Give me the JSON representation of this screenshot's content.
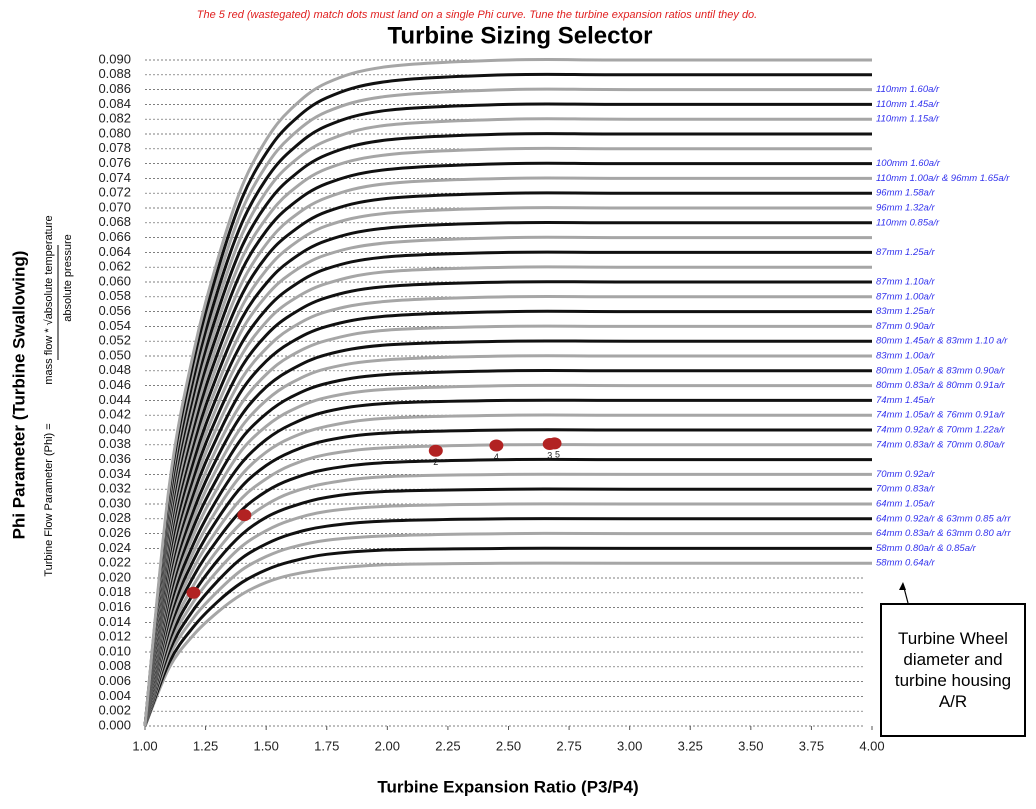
{
  "chart_data": {
    "type": "line",
    "note": "The 5 red (wastegated) match dots must land on a single Phi curve.  Tune the turbine expansion ratios until they do.",
    "title": "Turbine Sizing Selector",
    "x_label": "Turbine Expansion Ratio (P3/P4)",
    "y_label": "Phi Parameter (Turbine Swallowing)",
    "y_formula": {
      "lhs": "Turbine Flow Parameter (Phi) =",
      "numerator": "mass flow * √absolute temperature",
      "denominator": "absolute pressure"
    },
    "annotation": "Turbine Wheel diameter and turbine housing A/R",
    "grid": true,
    "xlim": [
      1.0,
      4.0
    ],
    "ylim": [
      0,
      0.09
    ],
    "xticks": [
      {
        "value": 1,
        "label": "1.00"
      },
      {
        "value": 1.25,
        "label": "1.25"
      },
      {
        "value": 1.5,
        "label": "1.50"
      },
      {
        "value": 1.75,
        "label": "1.75"
      },
      {
        "value": 2,
        "label": "2.00"
      },
      {
        "value": 2.25,
        "label": "2.25"
      },
      {
        "value": 2.5,
        "label": "2.50"
      },
      {
        "value": 2.75,
        "label": "2.75"
      },
      {
        "value": 3,
        "label": "3.00"
      },
      {
        "value": 3.25,
        "label": "3.25"
      },
      {
        "value": 3.5,
        "label": "3.50"
      },
      {
        "value": 3.75,
        "label": "3.75"
      },
      {
        "value": 4,
        "label": "4.00"
      }
    ],
    "yticks": [
      {
        "value": 0,
        "label": "0.000"
      },
      {
        "value": 0.002,
        "label": "0.002"
      },
      {
        "value": 0.004,
        "label": "0.004"
      },
      {
        "value": 0.006,
        "label": "0.006"
      },
      {
        "value": 0.008,
        "label": "0.008"
      },
      {
        "value": 0.01,
        "label": "0.010"
      },
      {
        "value": 0.012,
        "label": "0.012"
      },
      {
        "value": 0.014,
        "label": "0.014"
      },
      {
        "value": 0.016,
        "label": "0.016"
      },
      {
        "value": 0.018,
        "label": "0.018"
      },
      {
        "value": 0.02,
        "label": "0.020"
      },
      {
        "value": 0.022,
        "label": "0.022"
      },
      {
        "value": 0.024,
        "label": "0.024"
      },
      {
        "value": 0.026,
        "label": "0.026"
      },
      {
        "value": 0.028,
        "label": "0.028"
      },
      {
        "value": 0.03,
        "label": "0.030"
      },
      {
        "value": 0.032,
        "label": "0.032"
      },
      {
        "value": 0.034,
        "label": "0.034"
      },
      {
        "value": 0.036,
        "label": "0.036"
      },
      {
        "value": 0.038,
        "label": "0.038"
      },
      {
        "value": 0.04,
        "label": "0.040"
      },
      {
        "value": 0.042,
        "label": "0.042"
      },
      {
        "value": 0.044,
        "label": "0.044"
      },
      {
        "value": 0.046,
        "label": "0.046"
      },
      {
        "value": 0.048,
        "label": "0.048"
      },
      {
        "value": 0.05,
        "label": "0.050"
      },
      {
        "value": 0.052,
        "label": "0.052"
      },
      {
        "value": 0.054,
        "label": "0.054"
      },
      {
        "value": 0.056,
        "label": "0.056"
      },
      {
        "value": 0.058,
        "label": "0.058"
      },
      {
        "value": 0.06,
        "label": "0.060"
      },
      {
        "value": 0.062,
        "label": "0.062"
      },
      {
        "value": 0.064,
        "label": "0.064"
      },
      {
        "value": 0.066,
        "label": "0.066"
      },
      {
        "value": 0.068,
        "label": "0.068"
      },
      {
        "value": 0.07,
        "label": "0.070"
      },
      {
        "value": 0.072,
        "label": "0.072"
      },
      {
        "value": 0.074,
        "label": "0.074"
      },
      {
        "value": 0.076,
        "label": "0.076"
      },
      {
        "value": 0.078,
        "label": "0.078"
      },
      {
        "value": 0.08,
        "label": "0.080"
      },
      {
        "value": 0.082,
        "label": "0.082"
      },
      {
        "value": 0.084,
        "label": "0.084"
      },
      {
        "value": 0.086,
        "label": "0.086"
      },
      {
        "value": 0.088,
        "label": "0.088"
      },
      {
        "value": 0.09,
        "label": "0.090"
      }
    ],
    "x": [
      1.0,
      1.1,
      1.2,
      1.3,
      1.4,
      1.5,
      1.6,
      1.75,
      2.0,
      2.5,
      3.0,
      4.0
    ],
    "series": [
      {
        "name": "58mm 0.64a/r",
        "color": "#a6a6a6",
        "values": [
          0,
          0.0079,
          0.0123,
          0.0154,
          0.0178,
          0.0194,
          0.0204,
          0.0212,
          0.0218,
          0.022,
          0.022,
          0.022
        ]
      },
      {
        "name": "58mm 0.80a/r & 0.85a/r",
        "color": "#111111",
        "values": [
          0,
          0.0086,
          0.0134,
          0.0168,
          0.0194,
          0.0211,
          0.0222,
          0.0232,
          0.0238,
          0.024,
          0.024,
          0.024
        ]
      },
      {
        "name": "64mm 0.83a/r & 63mm 0.80 a/rr",
        "color": "#a6a6a6",
        "values": [
          0,
          0.0094,
          0.0146,
          0.0182,
          0.0211,
          0.0229,
          0.0241,
          0.0251,
          0.0257,
          0.026,
          0.026,
          0.026
        ]
      },
      {
        "name": "64mm 0.92a/r & 63mm 0.85 a/rr",
        "color": "#111111",
        "values": [
          0,
          0.0101,
          0.0157,
          0.0196,
          0.0227,
          0.0246,
          0.0259,
          0.027,
          0.0277,
          0.028,
          0.028,
          0.028
        ]
      },
      {
        "name": "64mm 1.05a/r",
        "color": "#a6a6a6",
        "values": [
          0,
          0.0108,
          0.0168,
          0.021,
          0.0243,
          0.0264,
          0.0278,
          0.029,
          0.0297,
          0.03,
          0.03,
          0.03
        ]
      },
      {
        "name": "70mm 0.83a/r",
        "color": "#111111",
        "values": [
          0,
          0.0115,
          0.0179,
          0.0224,
          0.0259,
          0.0282,
          0.0296,
          0.0309,
          0.0317,
          0.032,
          0.032,
          0.032
        ]
      },
      {
        "name": "70mm 0.92a/r",
        "color": "#a6a6a6",
        "values": [
          0,
          0.0122,
          0.019,
          0.0238,
          0.0275,
          0.0299,
          0.0315,
          0.0328,
          0.0337,
          0.034,
          0.034,
          0.034
        ]
      },
      {
        "color": "#111111",
        "values": [
          0,
          0.013,
          0.0202,
          0.0252,
          0.0292,
          0.0317,
          0.0333,
          0.0347,
          0.0356,
          0.036,
          0.036,
          0.036
        ]
      },
      {
        "name": "74mm 0.83a/r & 70mm 0.80a/r",
        "color": "#a6a6a6",
        "values": [
          0,
          0.0137,
          0.0213,
          0.0266,
          0.0308,
          0.0334,
          0.0352,
          0.0367,
          0.0376,
          0.038,
          0.038,
          0.038
        ]
      },
      {
        "name": "74mm 0.92a/r & 70mm 1.22a/r",
        "color": "#111111",
        "values": [
          0,
          0.0144,
          0.0224,
          0.028,
          0.0324,
          0.0352,
          0.037,
          0.0386,
          0.0396,
          0.04,
          0.04,
          0.04
        ]
      },
      {
        "name": "74mm 1.05a/r & 76mm 0.91a/r",
        "color": "#a6a6a6",
        "values": [
          0,
          0.0151,
          0.0235,
          0.0294,
          0.034,
          0.037,
          0.0389,
          0.0405,
          0.0416,
          0.042,
          0.042,
          0.042
        ]
      },
      {
        "name": "74mm 1.45a/r",
        "color": "#111111",
        "values": [
          0,
          0.0158,
          0.0246,
          0.0308,
          0.0356,
          0.0387,
          0.0407,
          0.0425,
          0.0436,
          0.044,
          0.044,
          0.044
        ]
      },
      {
        "name": "80mm 0.83a/r & 80mm 0.91a/r",
        "color": "#a6a6a6",
        "values": [
          0,
          0.0166,
          0.0258,
          0.0322,
          0.0373,
          0.0405,
          0.0426,
          0.0444,
          0.0455,
          0.046,
          0.046,
          0.046
        ]
      },
      {
        "name": "80mm 1.05a/r & 83mm 0.90a/r",
        "color": "#111111",
        "values": [
          0,
          0.0173,
          0.0269,
          0.0336,
          0.0389,
          0.0422,
          0.0444,
          0.0463,
          0.0475,
          0.048,
          0.048,
          0.048
        ]
      },
      {
        "name": "83mm 1.00a/r",
        "color": "#a6a6a6",
        "values": [
          0,
          0.018,
          0.028,
          0.035,
          0.0405,
          0.044,
          0.0463,
          0.0483,
          0.0495,
          0.05,
          0.05,
          0.05
        ]
      },
      {
        "name": "80mm 1.45a/r & 83mm 1.10 a/r",
        "color": "#111111",
        "values": [
          0,
          0.0187,
          0.0291,
          0.0364,
          0.0421,
          0.0458,
          0.0481,
          0.0502,
          0.0515,
          0.052,
          0.052,
          0.052
        ]
      },
      {
        "name": "87mm 0.90a/r",
        "color": "#a6a6a6",
        "values": [
          0,
          0.0194,
          0.0302,
          0.0378,
          0.0437,
          0.0475,
          0.05,
          0.0521,
          0.0535,
          0.054,
          0.054,
          0.054
        ]
      },
      {
        "name": "83mm 1.25a/r",
        "color": "#111111",
        "values": [
          0,
          0.0202,
          0.0314,
          0.0392,
          0.0454,
          0.0493,
          0.0518,
          0.054,
          0.0554,
          0.056,
          0.056,
          0.056
        ]
      },
      {
        "name": "87mm 1.00a/r",
        "color": "#a6a6a6",
        "values": [
          0,
          0.0209,
          0.0325,
          0.0406,
          0.047,
          0.051,
          0.0537,
          0.056,
          0.0574,
          0.058,
          0.058,
          0.058
        ]
      },
      {
        "name": "87mm 1.10a/r",
        "color": "#111111",
        "values": [
          0,
          0.0216,
          0.0336,
          0.042,
          0.0486,
          0.0528,
          0.0555,
          0.0579,
          0.0594,
          0.06,
          0.06,
          0.06
        ]
      },
      {
        "color": "#a6a6a6",
        "values": [
          0,
          0.0223,
          0.0347,
          0.0434,
          0.0502,
          0.0546,
          0.0574,
          0.0598,
          0.0614,
          0.062,
          0.062,
          0.062
        ]
      },
      {
        "name": "87mm 1.25a/r",
        "color": "#111111",
        "values": [
          0,
          0.023,
          0.0358,
          0.0448,
          0.0518,
          0.0563,
          0.0592,
          0.0618,
          0.0634,
          0.064,
          0.064,
          0.064
        ]
      },
      {
        "color": "#a6a6a6",
        "values": [
          0,
          0.0238,
          0.037,
          0.0462,
          0.0535,
          0.0581,
          0.0611,
          0.0637,
          0.0653,
          0.066,
          0.066,
          0.066
        ]
      },
      {
        "name": "110mm 0.85a/r",
        "color": "#111111",
        "values": [
          0,
          0.0245,
          0.0381,
          0.0476,
          0.0551,
          0.0598,
          0.0629,
          0.0656,
          0.0673,
          0.068,
          0.068,
          0.068
        ]
      },
      {
        "name": "96mm 1.32a/r",
        "color": "#a6a6a6",
        "values": [
          0,
          0.0252,
          0.0392,
          0.049,
          0.0567,
          0.0616,
          0.0648,
          0.0676,
          0.0693,
          0.07,
          0.07,
          0.07
        ]
      },
      {
        "name": "96mm 1.58a/r",
        "color": "#111111",
        "values": [
          0,
          0.0259,
          0.0403,
          0.0504,
          0.0583,
          0.0634,
          0.0666,
          0.0695,
          0.0713,
          0.072,
          0.072,
          0.072
        ]
      },
      {
        "name": "110mm 1.00a/r & 96mm 1.65a/r",
        "color": "#a6a6a6",
        "values": [
          0,
          0.0266,
          0.0414,
          0.0518,
          0.0599,
          0.0651,
          0.0685,
          0.0714,
          0.0733,
          0.074,
          0.074,
          0.074
        ]
      },
      {
        "name": "100mm 1.60a/r",
        "color": "#111111",
        "values": [
          0,
          0.0274,
          0.0426,
          0.0532,
          0.0616,
          0.0669,
          0.0703,
          0.0733,
          0.0752,
          0.076,
          0.076,
          0.076
        ]
      },
      {
        "color": "#a6a6a6",
        "values": [
          0,
          0.0281,
          0.0437,
          0.0546,
          0.0632,
          0.0686,
          0.0722,
          0.0753,
          0.0772,
          0.078,
          0.078,
          0.078
        ]
      },
      {
        "color": "#111111",
        "values": [
          0,
          0.0288,
          0.0448,
          0.056,
          0.0648,
          0.0704,
          0.074,
          0.0772,
          0.0792,
          0.08,
          0.08,
          0.08
        ]
      },
      {
        "name": "110mm 1.15a/r",
        "color": "#a6a6a6",
        "values": [
          0,
          0.0295,
          0.0459,
          0.0574,
          0.0664,
          0.0722,
          0.0759,
          0.0791,
          0.0812,
          0.082,
          0.082,
          0.082
        ]
      },
      {
        "name": "110mm 1.45a/r",
        "color": "#111111",
        "values": [
          0,
          0.0302,
          0.047,
          0.0588,
          0.068,
          0.0739,
          0.0777,
          0.0811,
          0.0832,
          0.084,
          0.084,
          0.084
        ]
      },
      {
        "name": "110mm 1.60a/r",
        "color": "#a6a6a6",
        "values": [
          0,
          0.031,
          0.0482,
          0.0602,
          0.0697,
          0.0757,
          0.0796,
          0.083,
          0.0851,
          0.086,
          0.086,
          0.086
        ]
      },
      {
        "color": "#111111",
        "values": [
          0,
          0.0317,
          0.0493,
          0.0616,
          0.0713,
          0.0774,
          0.0814,
          0.0849,
          0.0871,
          0.088,
          0.088,
          0.088
        ]
      },
      {
        "color": "#a6a6a6",
        "values": [
          0,
          0.0324,
          0.0504,
          0.063,
          0.0729,
          0.0792,
          0.0833,
          0.0869,
          0.0891,
          0.09,
          0.09,
          0.09
        ]
      }
    ],
    "points": {
      "color": "#b22222",
      "x": [
        1.2,
        1.41,
        2.2,
        2.45,
        2.67,
        2.69
      ],
      "y": [
        0.018,
        0.0285,
        0.0372,
        0.0379,
        0.0381,
        0.0382
      ],
      "labels": [
        null,
        null,
        "2",
        "4",
        "3",
        "5"
      ]
    }
  }
}
